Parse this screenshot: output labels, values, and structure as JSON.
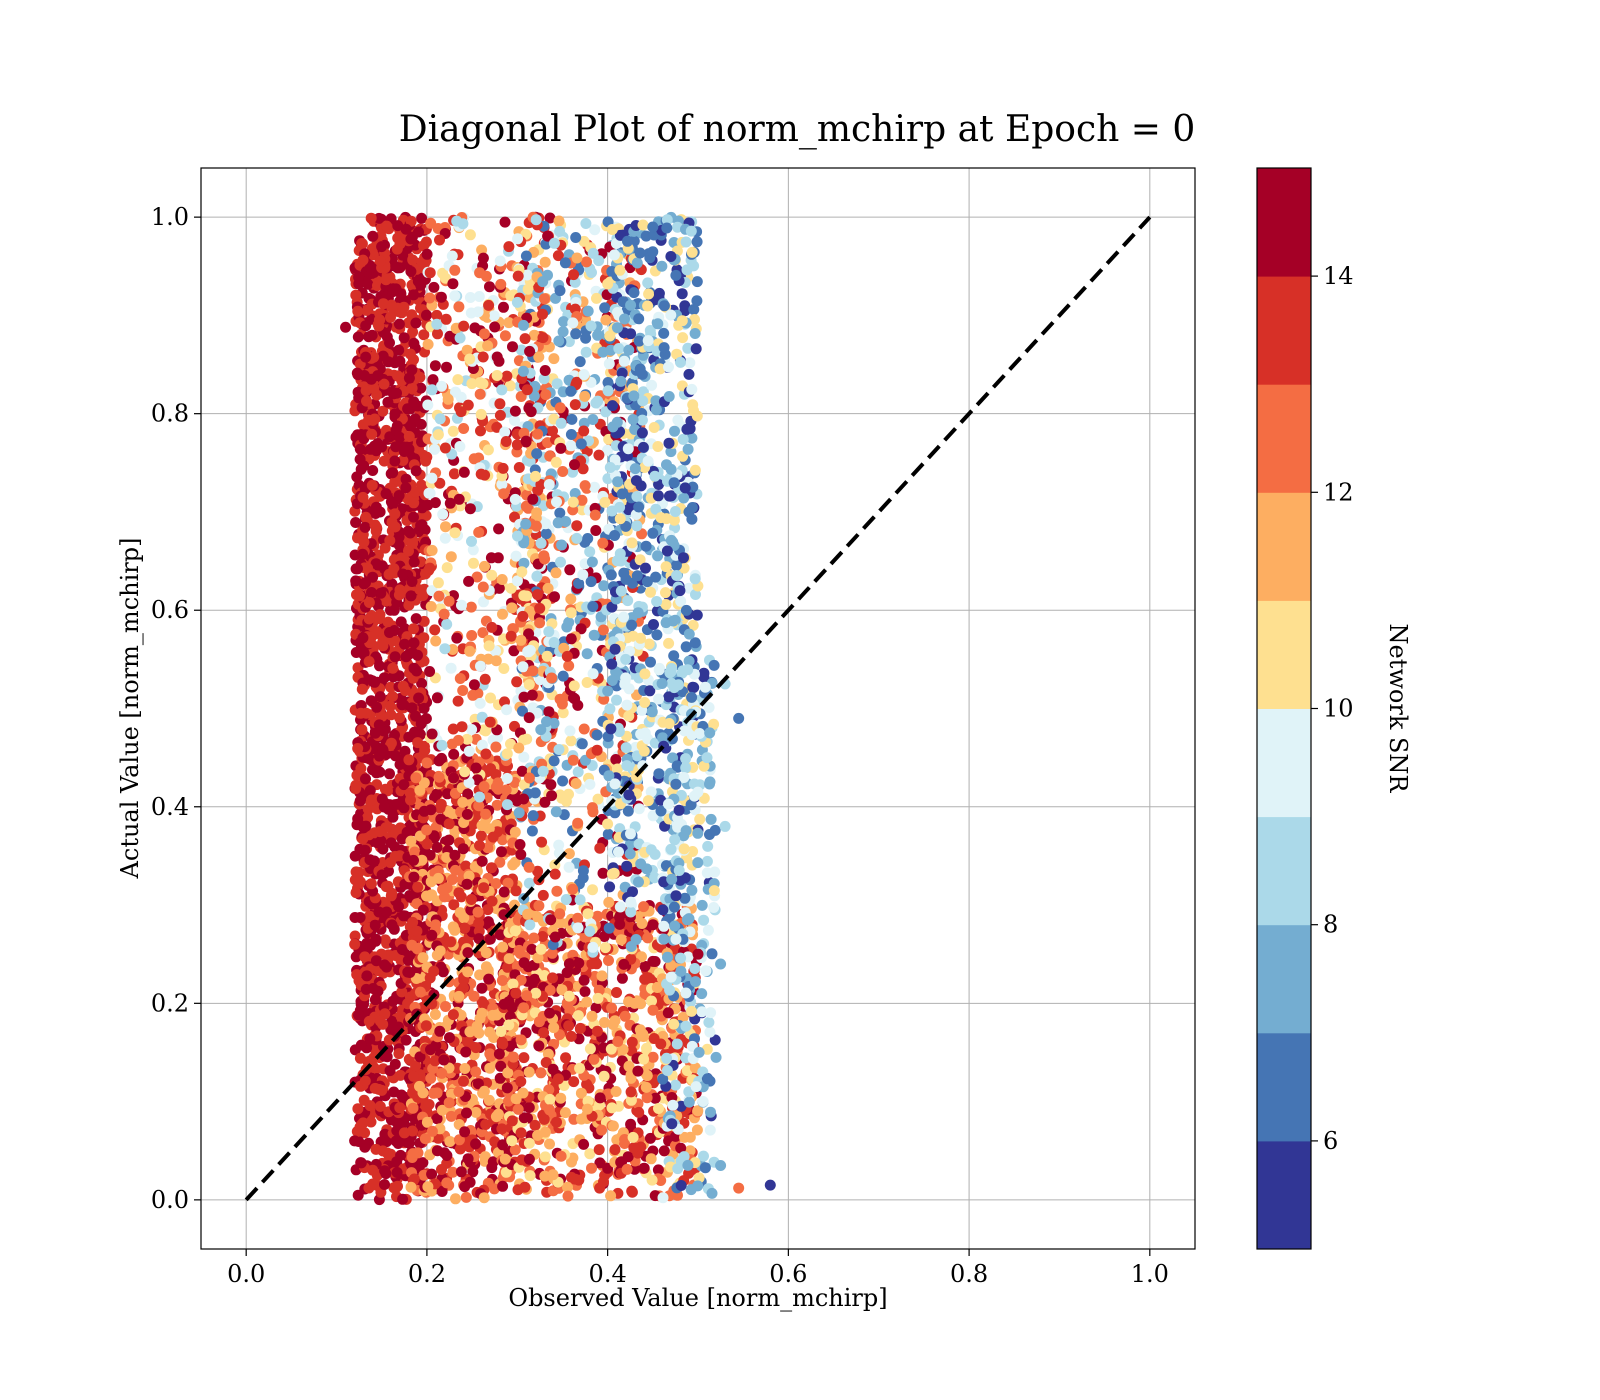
{
  "chart_data": {
    "type": "scatter",
    "title": "Diagonal Plot of norm_mchirp at Epoch = 0",
    "xlabel": "Observed Value [norm_mchirp]",
    "ylabel": "Actual Value [norm_mchirp]",
    "xlim": [
      -0.05,
      1.05
    ],
    "ylim": [
      -0.05,
      1.05
    ],
    "xticks": [
      "0.0",
      "0.2",
      "0.4",
      "0.6",
      "0.8",
      "1.0"
    ],
    "yticks": [
      "0.0",
      "0.2",
      "0.4",
      "0.6",
      "0.8",
      "1.0"
    ],
    "grid": true,
    "reference_line": {
      "x": [
        0,
        1
      ],
      "y": [
        0,
        1
      ],
      "style": "dashed",
      "color": "#000000"
    },
    "colorbar": {
      "label": "Network SNR",
      "range": [
        5,
        15
      ],
      "ticks": [
        "6",
        "8",
        "10",
        "12",
        "14"
      ],
      "colors": [
        "#313695",
        "#4575b4",
        "#74add1",
        "#abd9e9",
        "#e0f3f8",
        "#fee090",
        "#fdae61",
        "#f46d43",
        "#d73027",
        "#a50026"
      ]
    },
    "points": [
      [
        0.58,
        0.015,
        5.5
      ],
      [
        0.545,
        0.49,
        6.5
      ],
      [
        0.53,
        0.38,
        8.5
      ],
      [
        0.525,
        0.24,
        7.5
      ],
      [
        0.545,
        0.012,
        12.5
      ],
      [
        0.53,
        0.525,
        8.5
      ],
      [
        0.51,
        0.45,
        8.8
      ],
      [
        0.52,
        0.145,
        7.6
      ],
      [
        0.525,
        0.035,
        7.8
      ],
      [
        0.11,
        0.888,
        14.5
      ],
      [
        0.12,
        0.06,
        14.2
      ],
      [
        0.5,
        0.25,
        14.5
      ],
      [
        0.49,
        0.7,
        6.0
      ],
      [
        0.49,
        0.84,
        5.6
      ],
      [
        0.45,
        0.99,
        6.2
      ],
      [
        0.47,
        0.96,
        5.5
      ],
      [
        0.42,
        0.55,
        8.0
      ],
      [
        0.43,
        0.2,
        11.0
      ],
      [
        0.46,
        0.95,
        7.0
      ],
      [
        0.48,
        0.62,
        5.8
      ]
    ],
    "density_bands": [
      {
        "x": [
          0.12,
          0.2
        ],
        "y": [
          0.0,
          1.0
        ],
        "snr": [
          13.0,
          15.0
        ],
        "n": 1700
      },
      {
        "x": [
          0.18,
          0.3
        ],
        "y": [
          0.0,
          0.45
        ],
        "snr": [
          11.0,
          15.0
        ],
        "n": 900
      },
      {
        "x": [
          0.2,
          0.34
        ],
        "y": [
          0.4,
          1.0
        ],
        "snr": [
          8.5,
          15.0
        ],
        "n": 600
      },
      {
        "x": [
          0.28,
          0.5
        ],
        "y": [
          0.0,
          0.3
        ],
        "snr": [
          10.5,
          15.0
        ],
        "n": 900
      },
      {
        "x": [
          0.3,
          0.44
        ],
        "y": [
          0.25,
          1.0
        ],
        "snr": [
          6.0,
          15.0
        ],
        "n": 800
      },
      {
        "x": [
          0.4,
          0.5
        ],
        "y": [
          0.3,
          1.0
        ],
        "snr": [
          5.0,
          11.0
        ],
        "n": 700
      },
      {
        "x": [
          0.46,
          0.52
        ],
        "y": [
          0.0,
          0.55
        ],
        "snr": [
          5.5,
          10.5
        ],
        "n": 250
      }
    ]
  }
}
